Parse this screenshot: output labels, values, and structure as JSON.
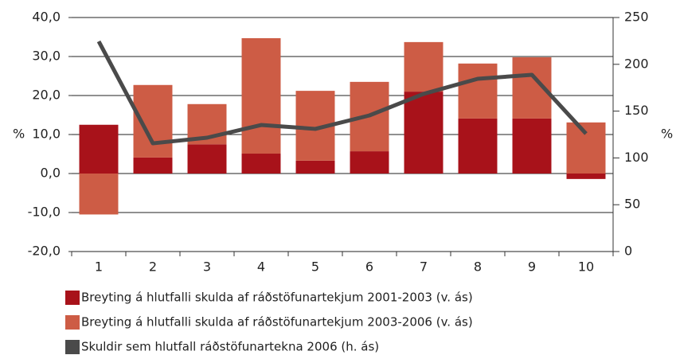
{
  "chart_data": {
    "type": "bar-line",
    "categories": [
      "1",
      "2",
      "3",
      "4",
      "5",
      "6",
      "7",
      "8",
      "9",
      "10"
    ],
    "series": [
      {
        "name": "Breyting á hlutfalli skulda af ráðstöfunartekjum 2001-2003 (v. ás)",
        "color": "#a8121a",
        "type": "bar",
        "values": [
          12.5,
          4.1,
          7.5,
          5.1,
          3.3,
          5.7,
          21,
          14.1,
          14.1,
          -1.4
        ]
      },
      {
        "name": "Breyting á hlutfalli skulda af ráðstöfunartekjum 2003-2006 (v. ás)",
        "color": "#cd5c45",
        "type": "bar",
        "values": [
          -10.5,
          18.6,
          10.3,
          29.6,
          17.9,
          17.8,
          12.7,
          14.1,
          15.7,
          13.1
        ]
      },
      {
        "name": "Skuldir sem hlutfall ráðstöfunartekna 2006 (h. ás)",
        "color": "#4a4a4a",
        "type": "line",
        "axis": "y2",
        "values": [
          224.5,
          115.6,
          121.6,
          135.2,
          131,
          145.4,
          168.4,
          184.5,
          188.8,
          125.9
        ]
      }
    ],
    "ylabel": "%",
    "y2label": "%",
    "ylim": [
      -20,
      40
    ],
    "yticks": [
      {
        "value": -20,
        "label": "-20,0"
      },
      {
        "value": -10,
        "label": "-10,0"
      },
      {
        "value": 0,
        "label": "0,0"
      },
      {
        "value": 10,
        "label": "10,0"
      },
      {
        "value": 20,
        "label": "20,0"
      },
      {
        "value": 30,
        "label": "30,0"
      },
      {
        "value": 40,
        "label": "40,0"
      }
    ],
    "y2lim": [
      0,
      250
    ],
    "y2ticks": [
      0,
      50,
      100,
      150,
      200,
      250
    ],
    "grid": true
  }
}
